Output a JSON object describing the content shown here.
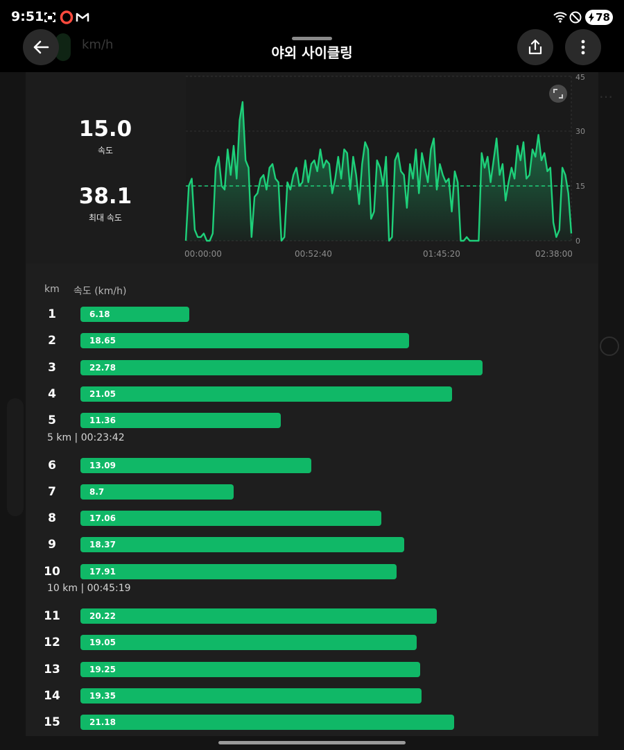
{
  "status_bar": {
    "time": "9:51",
    "battery": "78",
    "icons": [
      "screenshot-icon",
      "opera-icon",
      "gmail-icon",
      "wifi-icon",
      "do-not-disturb-icon",
      "battery-charging-icon"
    ]
  },
  "app_bar": {
    "title": "야외 사이클링",
    "background_unit": "km/h"
  },
  "stats": {
    "avg_value": "15.0",
    "avg_label": "속도",
    "max_value": "38.1",
    "max_label": "최대 속도"
  },
  "chart_data": {
    "type": "area",
    "y_ticks": [
      "45",
      "30",
      "15",
      "0"
    ],
    "ylim": [
      0,
      45
    ],
    "x_ticks": [
      "00:00:00",
      "00:52:40",
      "01:45:20",
      "02:38:00"
    ],
    "x_range_minutes": [
      0,
      158
    ],
    "average_line": 15.0,
    "grid": "dashed horizontal",
    "series": [
      {
        "values": [
          0,
          15,
          17,
          3,
          1,
          1,
          2,
          0,
          0,
          2,
          20,
          23,
          15,
          14,
          25,
          18,
          26,
          17,
          33,
          38,
          22,
          20,
          1,
          12,
          13,
          17,
          18,
          14,
          20,
          21,
          17,
          16,
          0,
          1,
          16,
          14,
          18,
          20,
          15,
          16,
          22,
          16,
          21,
          22,
          19,
          25,
          20,
          22,
          21,
          13,
          17,
          23,
          17,
          25,
          24,
          14,
          23,
          18,
          10,
          21,
          27,
          25,
          6,
          8,
          22,
          20,
          15,
          23,
          0,
          1,
          22,
          24,
          19,
          18,
          9,
          21,
          17,
          25,
          13,
          24,
          20,
          16,
          25,
          28,
          14,
          21,
          18,
          16,
          17,
          8,
          19,
          16,
          0,
          0,
          1,
          0,
          0,
          0,
          0,
          24,
          20,
          23,
          16,
          22,
          28,
          18,
          21,
          11,
          16,
          20,
          17,
          26,
          22,
          27,
          17,
          18,
          25,
          23,
          29,
          22,
          24,
          19,
          20,
          5,
          1,
          3,
          20,
          18,
          13,
          2
        ]
      }
    ]
  },
  "splits": {
    "header_km": "km",
    "header_speed": "속도 (km/h)",
    "axis_max": 25,
    "rows": [
      {
        "km": "1",
        "speed": "6.18"
      },
      {
        "km": "2",
        "speed": "18.65"
      },
      {
        "km": "3",
        "speed": "22.78"
      },
      {
        "km": "4",
        "speed": "21.05"
      },
      {
        "km": "5",
        "speed": "11.36"
      },
      {
        "km": "6",
        "speed": "13.09"
      },
      {
        "km": "7",
        "speed": "8.7"
      },
      {
        "km": "8",
        "speed": "17.06"
      },
      {
        "km": "9",
        "speed": "18.37"
      },
      {
        "km": "10",
        "speed": "17.91"
      },
      {
        "km": "11",
        "speed": "20.22"
      },
      {
        "km": "12",
        "speed": "19.05"
      },
      {
        "km": "13",
        "speed": "19.25"
      },
      {
        "km": "14",
        "speed": "19.35"
      },
      {
        "km": "15",
        "speed": "21.18"
      }
    ],
    "summaries": [
      {
        "after_km": "5",
        "text": "5 km | 00:23:42"
      },
      {
        "after_km": "10",
        "text": "10 km | 00:45:19"
      }
    ]
  },
  "colors": {
    "accent_green": "#10b867",
    "line_green": "#1ed07a",
    "background": "#1e1e1e"
  }
}
